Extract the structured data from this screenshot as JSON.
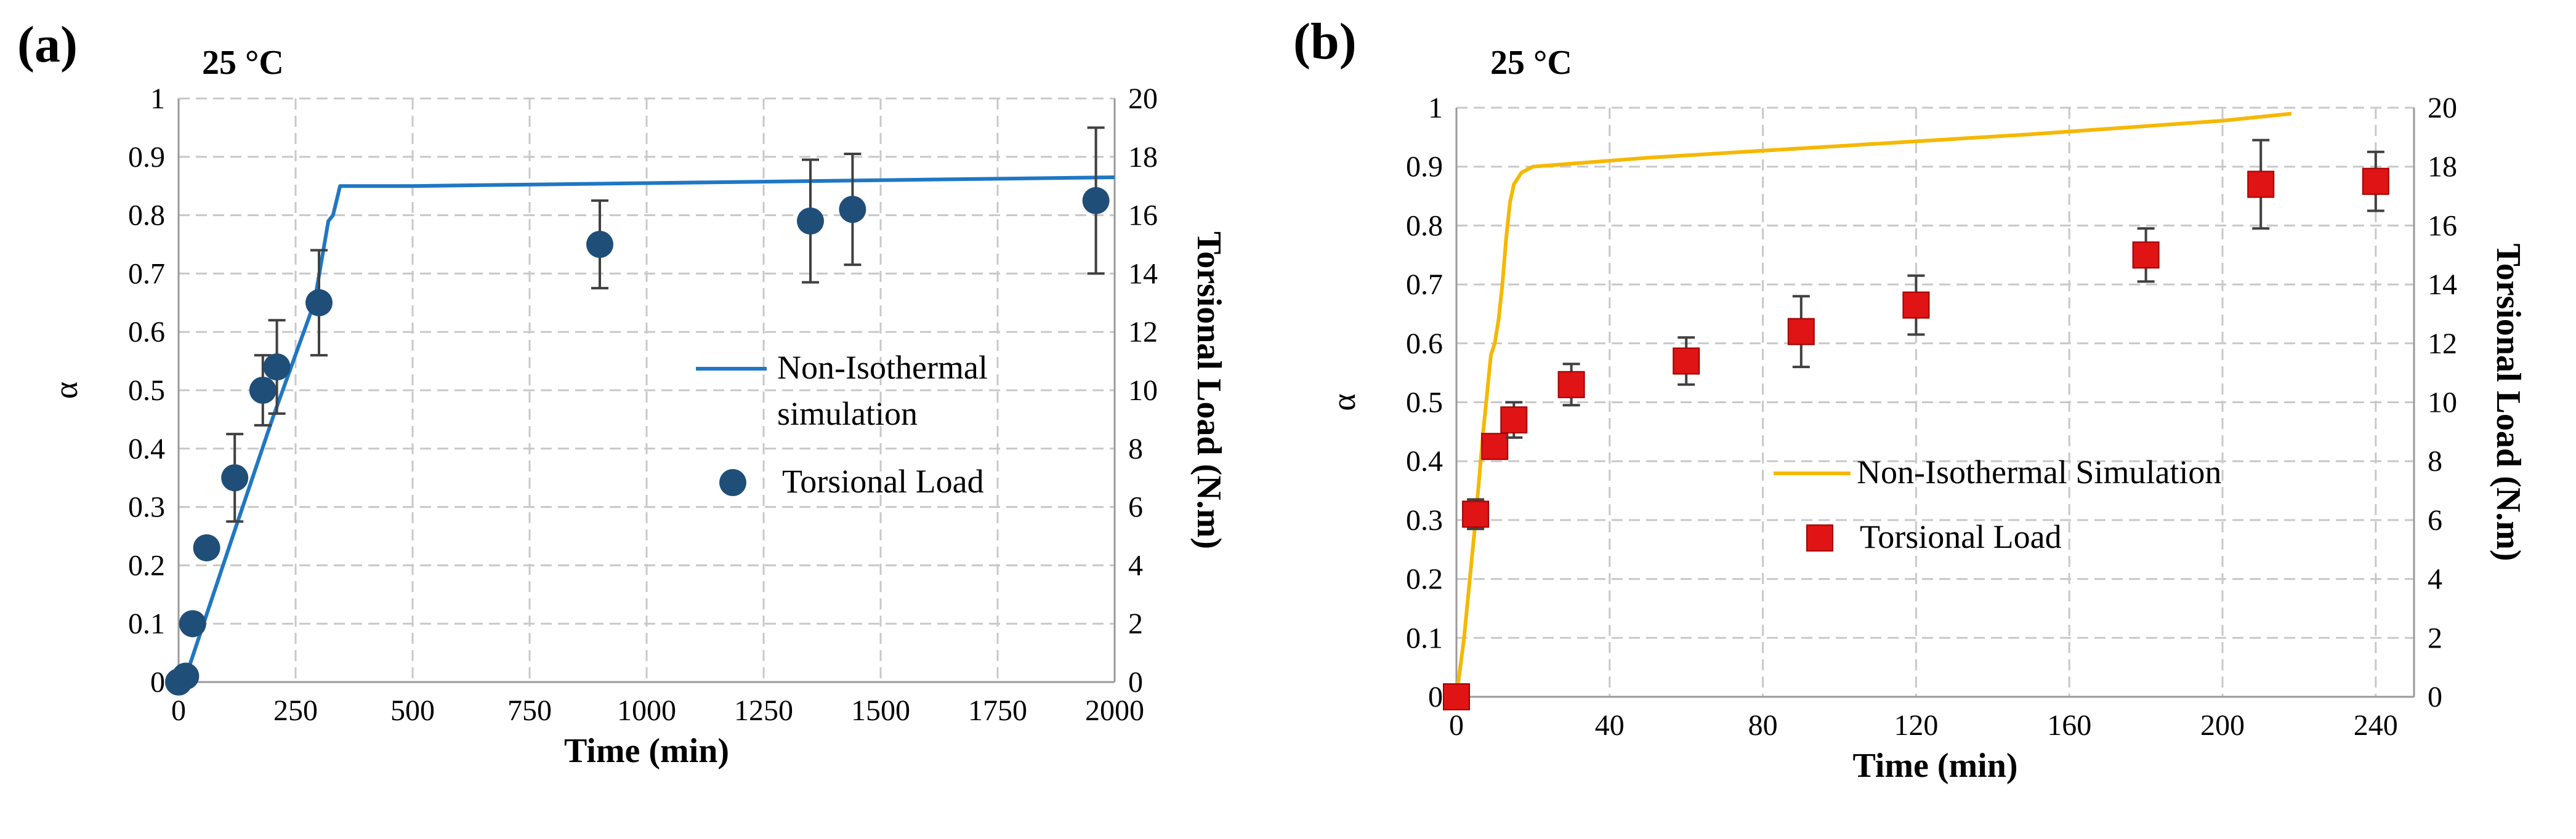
{
  "chart_data": [
    {
      "type": "scatter",
      "panel_label": "(a)",
      "annotation": "25 °C",
      "xlabel": "Time (min)",
      "ylabel": "α",
      "y2label": "Torsional Load (N.m)",
      "xlim": [
        0,
        2000
      ],
      "ylim": [
        0,
        1
      ],
      "y2lim": [
        0,
        20
      ],
      "xticks": [
        "0",
        "250",
        "500",
        "750",
        "1000",
        "1250",
        "1500",
        "1750",
        "2000"
      ],
      "yticks": [
        "0",
        "0.1",
        "0.2",
        "0.3",
        "0.4",
        "0.5",
        "0.6",
        "0.7",
        "0.8",
        "0.9",
        "1"
      ],
      "y2ticks": [
        "0",
        "2",
        "4",
        "6",
        "8",
        "10",
        "12",
        "14",
        "16",
        "18",
        "20"
      ],
      "grid": true,
      "legend_position": "center-right",
      "series": [
        {
          "name": "Non-Isothermal simulation",
          "kind": "line",
          "color": "#1f77c4",
          "x": [
            0,
            20,
            120,
            200,
            290,
            320,
            330,
            345,
            500,
            1000,
            1500,
            2000
          ],
          "y": [
            0,
            0.02,
            0.26,
            0.45,
            0.65,
            0.79,
            0.8,
            0.85,
            0.85,
            0.855,
            0.86,
            0.865
          ]
        },
        {
          "name": "Torsional Load",
          "kind": "marker",
          "color": "#1f4e79",
          "x": [
            0,
            15,
            30,
            60,
            120,
            180,
            210,
            300,
            900,
            1350,
            1440,
            1960
          ],
          "y": [
            0,
            0.01,
            0.1,
            0.23,
            0.35,
            0.5,
            0.54,
            0.65,
            0.75,
            0.79,
            0.81,
            0.825
          ],
          "err": [
            0,
            0,
            0,
            0,
            0.075,
            0.06,
            0.08,
            0.09,
            0.075,
            0.105,
            0.095,
            0.125
          ]
        }
      ]
    },
    {
      "type": "scatter",
      "panel_label": "(b)",
      "annotation": "25 °C",
      "xlabel": "Time (min)",
      "ylabel": "α",
      "y2label": "Torsional Load (N.m)",
      "xlim": [
        0,
        250
      ],
      "ylim": [
        0,
        1
      ],
      "y2lim": [
        0,
        20
      ],
      "xticks": [
        "0",
        "40",
        "80",
        "120",
        "160",
        "200",
        "240"
      ],
      "yticks": [
        "0",
        "0.1",
        "0.2",
        "0.3",
        "0.4",
        "0.5",
        "0.6",
        "0.7",
        "0.8",
        "0.9",
        "1"
      ],
      "y2ticks": [
        "0",
        "2",
        "4",
        "6",
        "8",
        "10",
        "12",
        "14",
        "16",
        "18",
        "20"
      ],
      "grid": true,
      "legend_position": "center-right",
      "series": [
        {
          "name": "Non-Isothermal Simulation",
          "kind": "line",
          "color": "#f5b800",
          "x": [
            0,
            2,
            5,
            7,
            9,
            10,
            11,
            12,
            13,
            14,
            15,
            17,
            20,
            30,
            50,
            100,
            150,
            200,
            218
          ],
          "y": [
            0,
            0.1,
            0.3,
            0.45,
            0.58,
            0.6,
            0.64,
            0.7,
            0.78,
            0.84,
            0.87,
            0.89,
            0.9,
            0.905,
            0.915,
            0.935,
            0.955,
            0.978,
            0.99
          ]
        },
        {
          "name": "Torsional Load",
          "kind": "marker",
          "color": "#e01414",
          "x": [
            0,
            5,
            10,
            15,
            30,
            60,
            90,
            120,
            180,
            210,
            240
          ],
          "y": [
            0,
            0.31,
            0.425,
            0.47,
            0.53,
            0.57,
            0.62,
            0.665,
            0.75,
            0.87,
            0.875
          ],
          "err": [
            0,
            0.025,
            0.02,
            0.03,
            0.035,
            0.04,
            0.06,
            0.05,
            0.045,
            0.075,
            0.05
          ]
        }
      ]
    }
  ]
}
